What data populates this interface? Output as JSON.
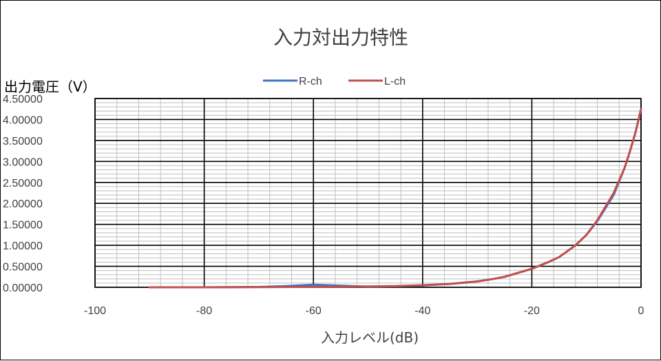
{
  "chart_data": {
    "type": "line",
    "title": "入力対出力特性",
    "xlabel": "入力レベル(dB)",
    "ylabel": "出力電圧（V）",
    "xlim": [
      -100,
      0
    ],
    "ylim": [
      0,
      4.5
    ],
    "x_ticks": [
      "-100",
      "-80",
      "-60",
      "-40",
      "-20",
      "0"
    ],
    "x_tick_values": [
      -100,
      -80,
      -60,
      -40,
      -20,
      0
    ],
    "y_ticks": [
      "0.00000",
      "0.50000",
      "1.00000",
      "1.50000",
      "2.00000",
      "2.50000",
      "3.00000",
      "3.50000",
      "4.00000",
      "4.50000"
    ],
    "y_tick_values": [
      0,
      0.5,
      1,
      1.5,
      2,
      2.5,
      3,
      3.5,
      4,
      4.5
    ],
    "grid": {
      "major": true,
      "minor": true,
      "x_minor_step": 4,
      "y_minor_step": 0.1
    },
    "legend_position": "top-center",
    "series": [
      {
        "name": "R-ch",
        "color": "#4472C4",
        "x": [
          -90,
          -80,
          -70,
          -65,
          -60,
          -55,
          -50,
          -45,
          -40,
          -35,
          -30,
          -27,
          -25,
          -20,
          -17,
          -15,
          -12,
          -10,
          -8,
          -5,
          -3,
          -2,
          -1,
          0
        ],
        "y": [
          0.0,
          0.0,
          0.008,
          0.03,
          0.06,
          0.04,
          0.015,
          0.025,
          0.045,
          0.08,
          0.14,
          0.2,
          0.25,
          0.44,
          0.6,
          0.72,
          1.0,
          1.25,
          1.58,
          2.2,
          2.85,
          3.25,
          3.7,
          4.25
        ]
      },
      {
        "name": "L-ch",
        "color": "#C0504D",
        "x": [
          -90,
          -80,
          -70,
          -60,
          -55,
          -50,
          -45,
          -40,
          -35,
          -30,
          -27,
          -25,
          -20,
          -17,
          -15,
          -12,
          -10,
          -8,
          -5,
          -3,
          -2,
          -1,
          0
        ],
        "y": [
          0.0,
          0.0,
          0.003,
          0.01,
          0.015,
          0.02,
          0.03,
          0.05,
          0.08,
          0.14,
          0.2,
          0.25,
          0.44,
          0.6,
          0.72,
          1.0,
          1.25,
          1.6,
          2.25,
          2.85,
          3.25,
          3.7,
          4.25
        ]
      }
    ]
  }
}
